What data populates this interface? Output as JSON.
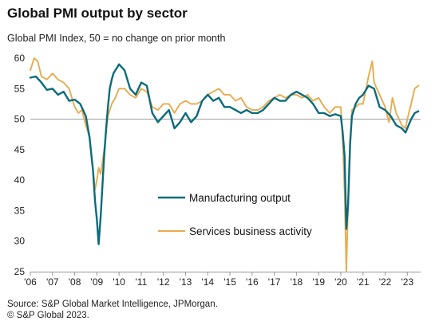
{
  "title": "Global PMI output by sector",
  "subtitle": "Global PMI Index, 50 = no change on prior month",
  "source_lines": [
    "Source: S&P Global Market Intelligence, JPMorgan.",
    "© S&P Global 2023."
  ],
  "chart_data": {
    "type": "line",
    "title": "Global PMI output by sector",
    "ylabel": "Global PMI Index, 50 = no change on prior month",
    "xlabel": "",
    "ylim": [
      25,
      60
    ],
    "xlim": [
      2006.0,
      2023.6
    ],
    "yticks": [
      25,
      30,
      35,
      40,
      45,
      50,
      55,
      60
    ],
    "xtick_labels": [
      "'06",
      "'07",
      "'08",
      "'09",
      "'10",
      "'11",
      "'12",
      "'13",
      "'14",
      "'15",
      "'16",
      "'17",
      "'18",
      "'19",
      "'20",
      "'21",
      "'22",
      "'23"
    ],
    "xtick_years": [
      2006,
      2007,
      2008,
      2009,
      2010,
      2011,
      2012,
      2013,
      2014,
      2015,
      2016,
      2017,
      2018,
      2019,
      2020,
      2021,
      2022,
      2023
    ],
    "grid": "horizontal-50-line-only",
    "legend_position": "center",
    "series": [
      {
        "name": "Manufacturing output",
        "color": "#0a6b7c",
        "x": [
          2006.0,
          2006.25,
          2006.5,
          2006.75,
          2007.0,
          2007.25,
          2007.5,
          2007.75,
          2008.0,
          2008.25,
          2008.5,
          2008.67,
          2008.83,
          2008.92,
          2009.0,
          2009.08,
          2009.17,
          2009.25,
          2009.33,
          2009.42,
          2009.5,
          2009.58,
          2009.67,
          2009.75,
          2009.83,
          2009.92,
          2010.0,
          2010.25,
          2010.5,
          2010.75,
          2011.0,
          2011.25,
          2011.5,
          2011.75,
          2012.0,
          2012.25,
          2012.5,
          2012.75,
          2013.0,
          2013.25,
          2013.5,
          2013.75,
          2014.0,
          2014.25,
          2014.5,
          2014.75,
          2015.0,
          2015.25,
          2015.5,
          2015.75,
          2016.0,
          2016.25,
          2016.5,
          2016.75,
          2017.0,
          2017.25,
          2017.5,
          2017.75,
          2018.0,
          2018.25,
          2018.5,
          2018.75,
          2019.0,
          2019.25,
          2019.5,
          2019.75,
          2020.0,
          2020.08,
          2020.17,
          2020.25,
          2020.33,
          2020.42,
          2020.5,
          2020.67,
          2020.83,
          2021.0,
          2021.25,
          2021.5,
          2021.75,
          2022.0,
          2022.25,
          2022.5,
          2022.75,
          2022.92,
          2023.0,
          2023.17,
          2023.33,
          2023.5
        ],
        "values": [
          56.8,
          57.0,
          56.0,
          54.8,
          55.0,
          54.0,
          54.5,
          53.0,
          53.2,
          52.5,
          50.5,
          47.0,
          41.5,
          36.5,
          33.5,
          29.5,
          34.0,
          39.0,
          44.0,
          48.5,
          52.0,
          55.0,
          56.5,
          57.5,
          58.0,
          58.5,
          59.0,
          58.0,
          55.0,
          54.0,
          56.0,
          55.5,
          51.0,
          49.5,
          50.5,
          51.5,
          48.5,
          49.5,
          51.0,
          49.5,
          50.5,
          53.0,
          54.0,
          53.0,
          53.5,
          52.0,
          52.0,
          51.5,
          51.0,
          51.5,
          51.0,
          51.0,
          51.5,
          52.5,
          53.5,
          53.0,
          53.0,
          54.0,
          54.5,
          54.0,
          53.5,
          52.5,
          51.0,
          51.0,
          50.5,
          50.8,
          50.5,
          48.0,
          44.0,
          32.0,
          36.0,
          46.0,
          50.5,
          52.5,
          53.5,
          54.0,
          55.5,
          55.0,
          52.0,
          51.5,
          50.5,
          49.0,
          48.5,
          47.8,
          48.5,
          50.0,
          51.0,
          51.3
        ]
      },
      {
        "name": "Services business activity",
        "color": "#e8ab4f",
        "x": [
          2006.0,
          2006.17,
          2006.33,
          2006.5,
          2006.75,
          2007.0,
          2007.25,
          2007.5,
          2007.75,
          2008.0,
          2008.17,
          2008.33,
          2008.5,
          2008.67,
          2008.83,
          2008.92,
          2009.0,
          2009.08,
          2009.17,
          2009.25,
          2009.33,
          2009.42,
          2009.5,
          2009.67,
          2009.83,
          2010.0,
          2010.25,
          2010.5,
          2010.75,
          2011.0,
          2011.25,
          2011.5,
          2011.75,
          2012.0,
          2012.25,
          2012.5,
          2012.75,
          2013.0,
          2013.25,
          2013.5,
          2013.75,
          2014.0,
          2014.25,
          2014.5,
          2014.75,
          2015.0,
          2015.25,
          2015.5,
          2015.75,
          2016.0,
          2016.25,
          2016.5,
          2016.75,
          2017.0,
          2017.25,
          2017.5,
          2017.75,
          2018.0,
          2018.25,
          2018.5,
          2018.75,
          2019.0,
          2019.25,
          2019.5,
          2019.75,
          2020.0,
          2020.08,
          2020.17,
          2020.25,
          2020.33,
          2020.42,
          2020.5,
          2020.67,
          2020.83,
          2021.0,
          2021.25,
          2021.42,
          2021.5,
          2021.75,
          2022.0,
          2022.17,
          2022.33,
          2022.5,
          2022.75,
          2022.92,
          2023.0,
          2023.17,
          2023.33,
          2023.5
        ],
        "values": [
          58.0,
          60.0,
          59.5,
          57.0,
          56.5,
          57.5,
          56.5,
          56.0,
          55.0,
          52.0,
          51.0,
          51.5,
          49.0,
          47.0,
          41.5,
          38.5,
          40.0,
          42.0,
          41.0,
          43.0,
          45.0,
          48.0,
          50.5,
          52.5,
          53.5,
          55.0,
          55.0,
          54.0,
          53.5,
          55.0,
          54.5,
          52.0,
          51.5,
          52.5,
          52.5,
          51.0,
          52.5,
          53.0,
          52.5,
          52.5,
          53.0,
          54.0,
          54.5,
          55.0,
          54.0,
          54.0,
          53.0,
          53.5,
          52.0,
          51.5,
          51.5,
          52.0,
          53.0,
          53.5,
          54.0,
          53.5,
          54.0,
          54.0,
          53.5,
          54.0,
          53.0,
          53.5,
          52.0,
          51.0,
          52.0,
          52.0,
          47.0,
          38.0,
          25.0,
          36.0,
          45.0,
          51.5,
          52.0,
          52.5,
          52.5,
          57.0,
          59.5,
          56.0,
          54.0,
          52.0,
          49.5,
          53.5,
          51.0,
          49.0,
          48.5,
          50.0,
          52.5,
          55.0,
          55.5
        ]
      }
    ]
  }
}
